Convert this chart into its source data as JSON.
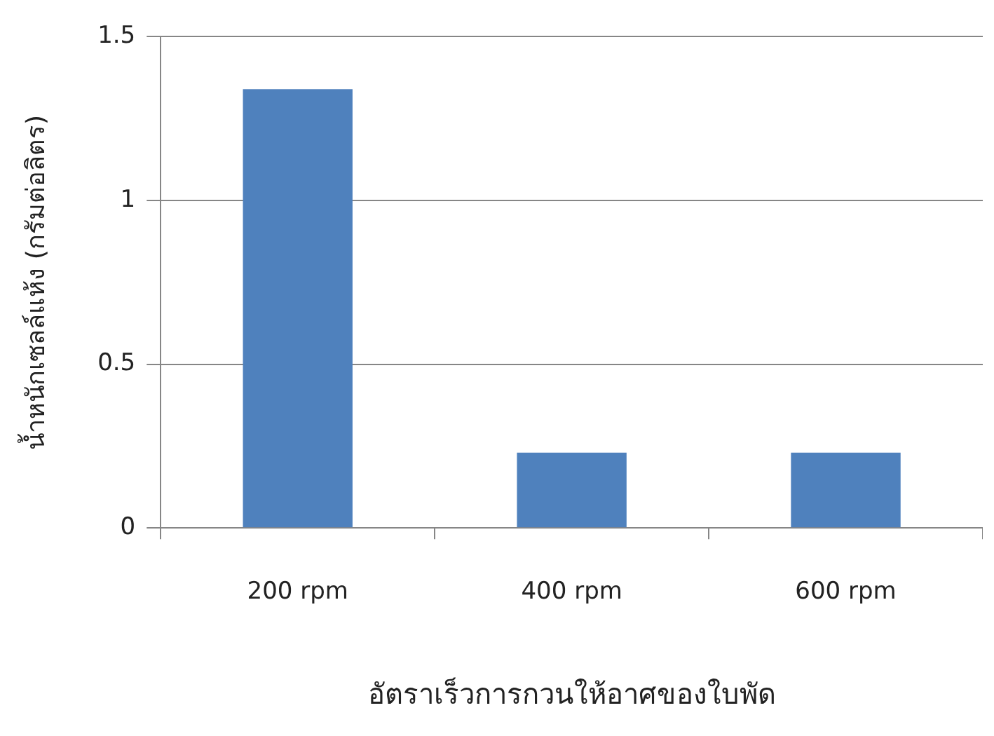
{
  "chart_data": {
    "type": "bar",
    "xlabel": "อัตราเร็วการกวนให้อาศของใบพัด",
    "ylabel": "น้ำหนักเซลล์แห้ง (กรัมต่อลิตร)",
    "categories": [
      "200 rpm",
      "400 rpm",
      "600 rpm"
    ],
    "values": [
      1.34,
      0.23,
      0.23
    ],
    "color": "#4f81bd",
    "ylim": [
      0,
      1.5
    ],
    "yticks": [
      0,
      0.5,
      1,
      1.5
    ],
    "grid": "y",
    "legend": false
  }
}
